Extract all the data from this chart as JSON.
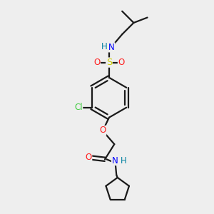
{
  "bg_color": "#eeeeee",
  "bond_color": "#1a1a1a",
  "colors": {
    "N": "#0000ff",
    "NH": "#0080a0",
    "O": "#ff2020",
    "S": "#cccc00",
    "Cl": "#40cc40",
    "C": "#1a1a1a"
  },
  "bond_lw": 1.6,
  "font_size": 8.5
}
